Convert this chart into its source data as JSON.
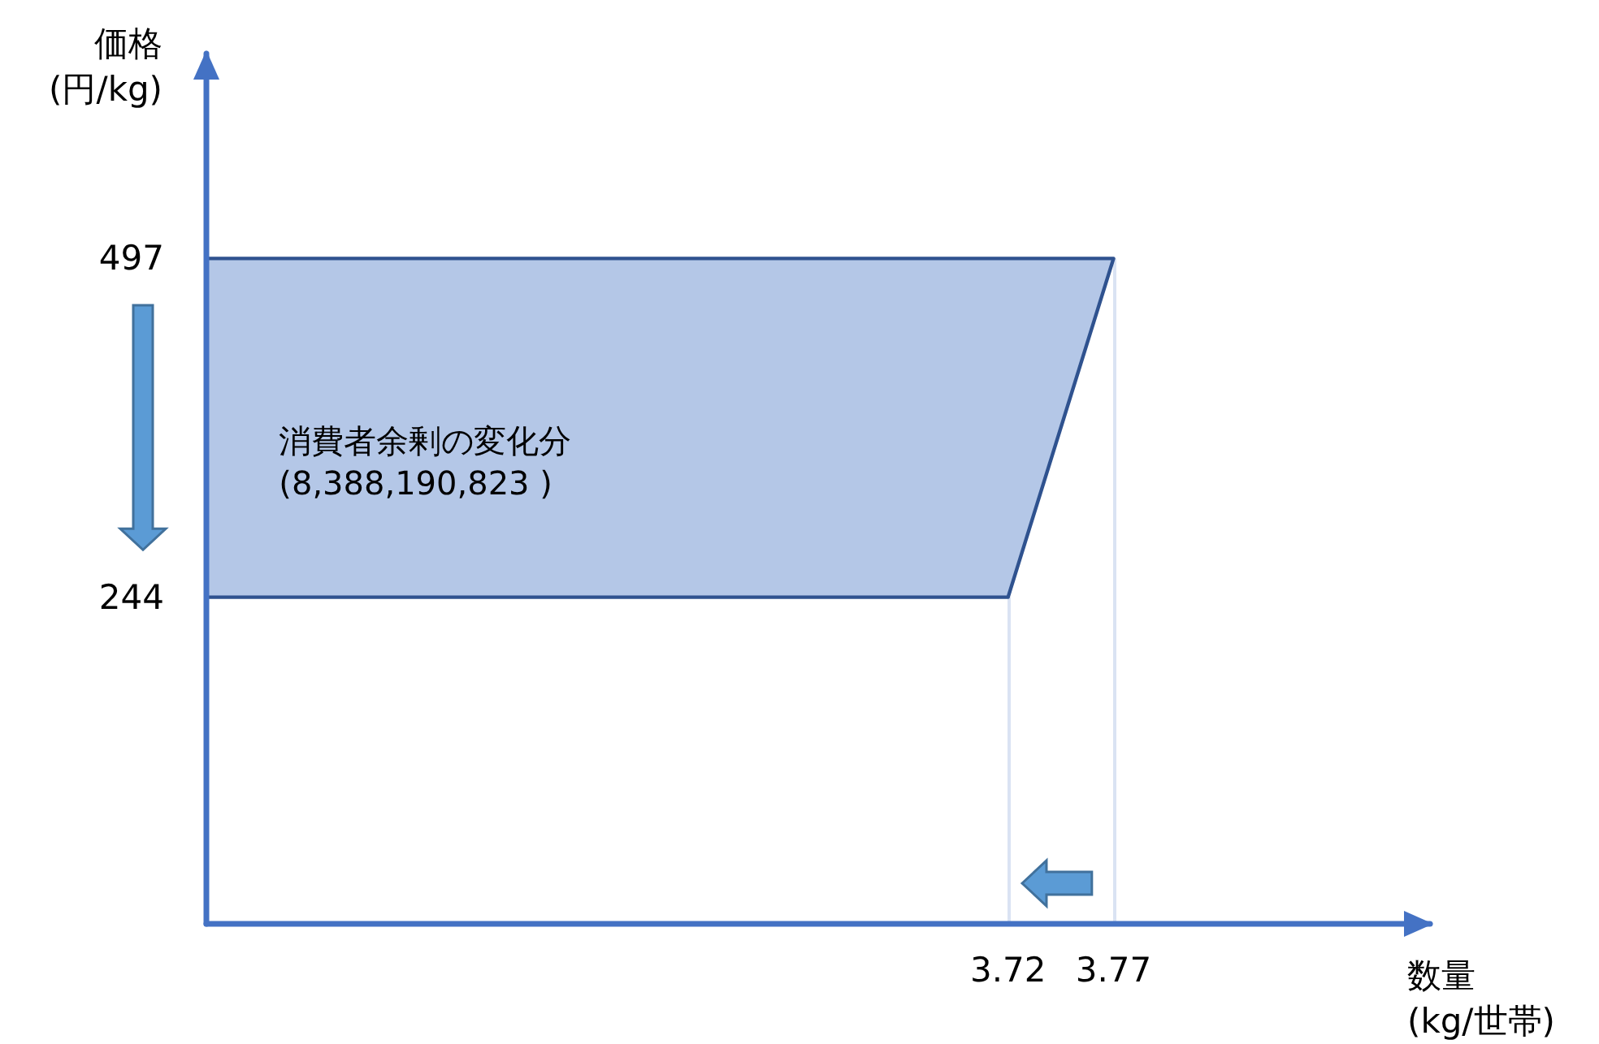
{
  "chart_data": {
    "type": "area",
    "xlabel": "数量\n(kg/世帯)",
    "ylabel": "価格\n(円/kg)",
    "annotations": [
      "消費者余剰の変化分\n(8,388,190,823 )"
    ],
    "x": [
      3.34,
      3.77,
      3.72,
      3.34
    ],
    "values": [
      497,
      497,
      244,
      244
    ],
    "color": "#b4c7e7",
    "xlim": [
      3.34,
      3.92
    ],
    "xticks": [
      3.72,
      3.77
    ],
    "ylim": [
      0,
      650
    ],
    "yticks": [
      244,
      497
    ],
    "ref_lines": [
      {
        "axis": "x",
        "value": 3.72,
        "color": "#dae3f3"
      },
      {
        "axis": "x",
        "value": 3.77,
        "color": "#dae3f3"
      }
    ]
  }
}
